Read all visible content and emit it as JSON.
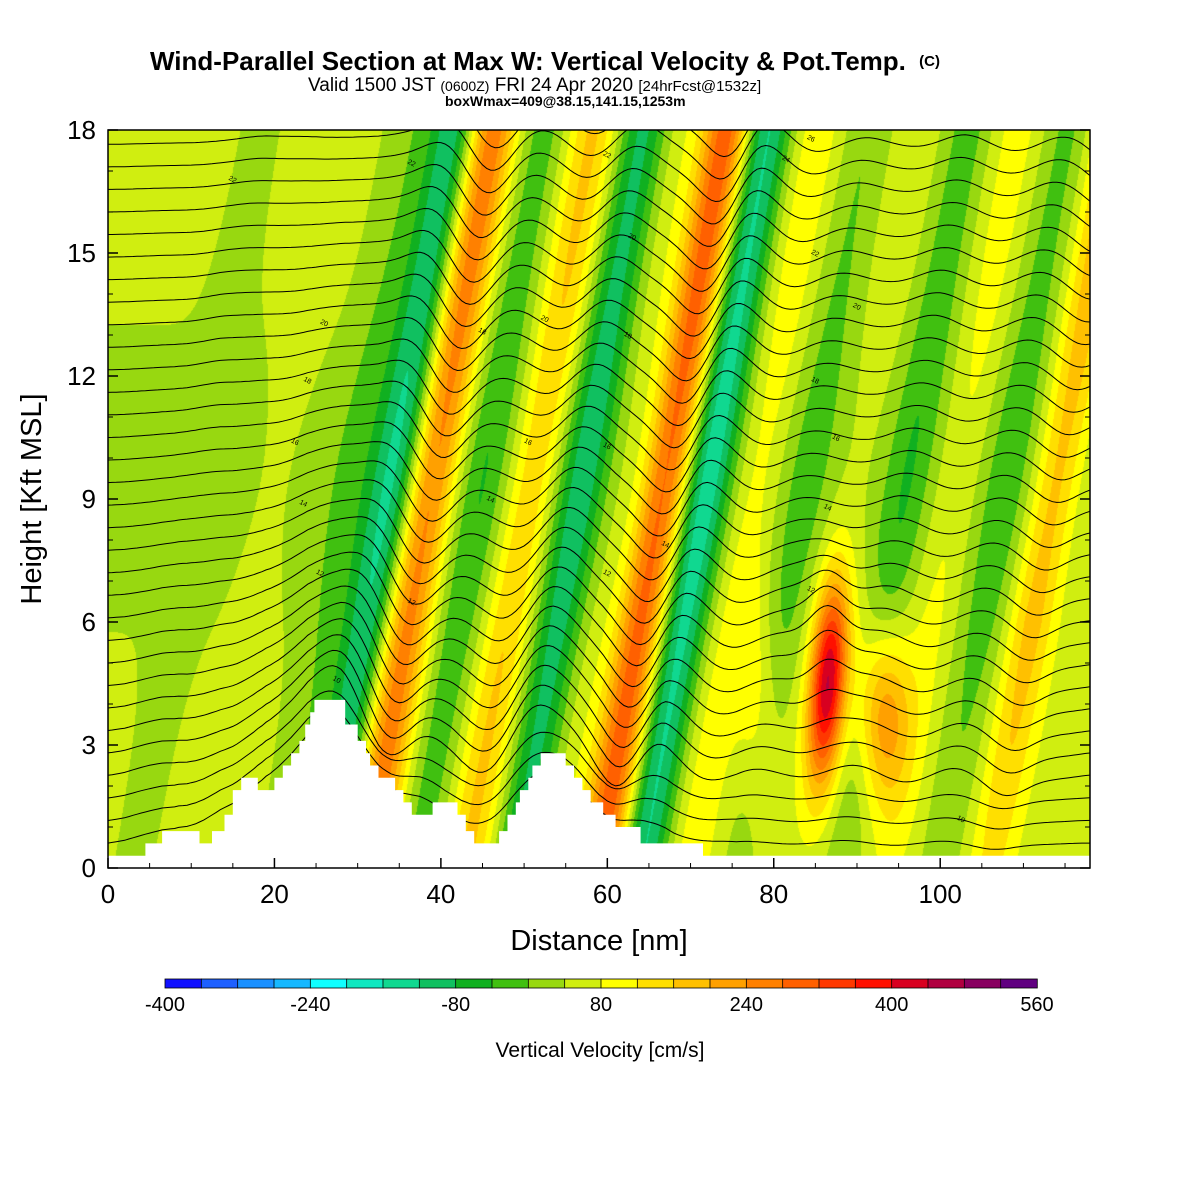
{
  "title": {
    "main": "Wind-Parallel Section at Max W: Vertical Velocity & Pot.Temp.",
    "main_suffix": "(C)",
    "valid_a": "Valid 1500 JST",
    "valid_b": "(0600Z)",
    "valid_c": "FRI 24 Apr 2020",
    "valid_d": "[24hrFcst@1532z]",
    "sub": "boxWmax=409@38.15,141.15,1253m"
  },
  "chart_data": {
    "type": "heatmap",
    "xlabel": "Distance [nm]",
    "ylabel": "Height [Kft MSL]",
    "xlim": [
      0,
      118
    ],
    "ylim": [
      0,
      18
    ],
    "xticks": [
      "0",
      "20",
      "40",
      "60",
      "80",
      "100"
    ],
    "yticks": [
      "0",
      "3",
      "6",
      "9",
      "12",
      "15",
      "18"
    ],
    "colorbar": {
      "label": "Vertical Velocity [cm/s]",
      "tick_labels": [
        "-400",
        "-240",
        "-80",
        "80",
        "240",
        "400",
        "560"
      ],
      "tick_values": [
        -400,
        -240,
        -80,
        80,
        240,
        400,
        560
      ],
      "levels": [
        -400,
        -360,
        -320,
        -280,
        -240,
        -200,
        -160,
        -120,
        -80,
        -40,
        0,
        40,
        80,
        120,
        160,
        200,
        240,
        280,
        320,
        360,
        400,
        440,
        480,
        520,
        560
      ],
      "colors": [
        "#1010ff",
        "#1e60ff",
        "#1a90ff",
        "#16b8ff",
        "#10ffff",
        "#10e8c0",
        "#10d890",
        "#10c060",
        "#10b020",
        "#40c010",
        "#98d810",
        "#d0ee10",
        "#ffff00",
        "#ffdf00",
        "#ffc000",
        "#ffa000",
        "#ff8000",
        "#ff6000",
        "#ff3800",
        "#ff1000",
        "#d80020",
        "#b00040",
        "#880060",
        "#600080"
      ]
    },
    "terrain": [
      [
        0,
        0.3
      ],
      [
        4.5,
        0.3
      ],
      [
        4.5,
        0.6
      ],
      [
        6.5,
        0.6
      ],
      [
        6.5,
        0.9
      ],
      [
        11,
        0.9
      ],
      [
        11,
        0.6
      ],
      [
        12.5,
        0.6
      ],
      [
        12.5,
        0.9
      ],
      [
        14,
        0.9
      ],
      [
        14,
        1.3
      ],
      [
        15,
        1.3
      ],
      [
        15,
        1.9
      ],
      [
        16,
        1.9
      ],
      [
        16,
        2.2
      ],
      [
        18,
        2.2
      ],
      [
        18,
        1.9
      ],
      [
        20,
        1.9
      ],
      [
        20,
        2.2
      ],
      [
        21,
        2.2
      ],
      [
        21,
        2.5
      ],
      [
        22,
        2.5
      ],
      [
        22,
        2.8
      ],
      [
        23,
        2.8
      ],
      [
        23,
        3.1
      ],
      [
        23.7,
        3.1
      ],
      [
        23.7,
        3.5
      ],
      [
        24.3,
        3.5
      ],
      [
        24.3,
        3.8
      ],
      [
        24.8,
        3.8
      ],
      [
        24.8,
        4.1
      ],
      [
        28.5,
        4.1
      ],
      [
        28.5,
        3.5
      ],
      [
        30,
        3.5
      ],
      [
        30,
        3.1
      ],
      [
        31,
        3.1
      ],
      [
        31,
        2.8
      ],
      [
        31.5,
        2.8
      ],
      [
        31.5,
        2.5
      ],
      [
        32.5,
        2.5
      ],
      [
        32.5,
        2.2
      ],
      [
        34.5,
        2.2
      ],
      [
        34.5,
        1.9
      ],
      [
        35.5,
        1.9
      ],
      [
        35.5,
        1.6
      ],
      [
        36.5,
        1.6
      ],
      [
        36.5,
        1.3
      ],
      [
        39,
        1.3
      ],
      [
        39,
        1.6
      ],
      [
        42,
        1.6
      ],
      [
        42,
        1.3
      ],
      [
        43,
        1.3
      ],
      [
        43,
        0.9
      ],
      [
        44,
        0.9
      ],
      [
        44,
        0.6
      ],
      [
        47,
        0.6
      ],
      [
        47,
        0.9
      ],
      [
        48,
        0.9
      ],
      [
        48,
        1.3
      ],
      [
        49,
        1.3
      ],
      [
        49,
        1.6
      ],
      [
        49.5,
        1.6
      ],
      [
        49.5,
        1.9
      ],
      [
        50.5,
        1.9
      ],
      [
        50.5,
        2.2
      ],
      [
        51,
        2.2
      ],
      [
        51,
        2.5
      ],
      [
        52,
        2.5
      ],
      [
        52,
        2.8
      ],
      [
        55,
        2.8
      ],
      [
        55,
        2.5
      ],
      [
        56,
        2.5
      ],
      [
        56,
        2.2
      ],
      [
        57,
        2.2
      ],
      [
        57,
        1.9
      ],
      [
        58,
        1.9
      ],
      [
        58,
        1.6
      ],
      [
        59.5,
        1.6
      ],
      [
        59.5,
        1.3
      ],
      [
        61,
        1.3
      ],
      [
        61,
        1.0
      ],
      [
        64,
        1.0
      ],
      [
        64,
        0.6
      ],
      [
        71.5,
        0.6
      ],
      [
        71.5,
        0.3
      ],
      [
        118,
        0.3
      ]
    ],
    "wave_columns_x": [
      3,
      12,
      21,
      26,
      31,
      37,
      43,
      49,
      54,
      59,
      64,
      70,
      76,
      82,
      88,
      94,
      100,
      106,
      112,
      117
    ],
    "wave_columns_w": [
      -20,
      20,
      -40,
      -160,
      220,
      -70,
      120,
      -140,
      20,
      260,
      -180,
      60,
      -50,
      20,
      -70,
      50,
      -60,
      140,
      20,
      -10
    ],
    "updraft_core": {
      "x": 86.5,
      "height_kft": 4.5,
      "w_cm_s": 409
    },
    "theta_contours": {
      "base_values_C": [
        7.5,
        8.2,
        8.8,
        9.4,
        10.0,
        10.6,
        11.2,
        11.8,
        12.4,
        13.0,
        13.6,
        14.2,
        14.8,
        15.4,
        16.0,
        16.5,
        17.0,
        17.5,
        18.0,
        18.6,
        19.2,
        19.8,
        20.4,
        21.0,
        21.6,
        22.2,
        22.8,
        23.4,
        24.0,
        24.6,
        25.2,
        25.8,
        26.4
      ],
      "labels": [
        {
          "text": "10",
          "x": 27.5,
          "y": 4.6
        },
        {
          "text": "12",
          "x": 25.5,
          "y": 7.2
        },
        {
          "text": "14",
          "x": 23.5,
          "y": 8.9
        },
        {
          "text": "16",
          "x": 22.5,
          "y": 10.4
        },
        {
          "text": "18",
          "x": 24.0,
          "y": 11.9
        },
        {
          "text": "20",
          "x": 26.0,
          "y": 13.3
        },
        {
          "text": "22",
          "x": 15.0,
          "y": 16.8
        },
        {
          "text": "22",
          "x": 36.5,
          "y": 17.2
        },
        {
          "text": "12",
          "x": 36.5,
          "y": 6.5
        },
        {
          "text": "14",
          "x": 46.0,
          "y": 9.0
        },
        {
          "text": "16",
          "x": 50.5,
          "y": 10.4
        },
        {
          "text": "18",
          "x": 45.0,
          "y": 13.1
        },
        {
          "text": "20",
          "x": 52.5,
          "y": 13.4
        },
        {
          "text": "12",
          "x": 60.0,
          "y": 7.2
        },
        {
          "text": "14",
          "x": 67.0,
          "y": 7.9
        },
        {
          "text": "16",
          "x": 60.0,
          "y": 10.3
        },
        {
          "text": "18",
          "x": 62.5,
          "y": 13.0
        },
        {
          "text": "20",
          "x": 63.0,
          "y": 15.4
        },
        {
          "text": "22",
          "x": 60.0,
          "y": 17.4
        },
        {
          "text": "24",
          "x": 81.5,
          "y": 17.3
        },
        {
          "text": "26",
          "x": 84.5,
          "y": 17.8
        },
        {
          "text": "22",
          "x": 85.0,
          "y": 15.0
        },
        {
          "text": "20",
          "x": 90.0,
          "y": 13.7
        },
        {
          "text": "18",
          "x": 85.0,
          "y": 11.9
        },
        {
          "text": "16",
          "x": 87.5,
          "y": 10.5
        },
        {
          "text": "14",
          "x": 86.5,
          "y": 8.8
        },
        {
          "text": "12",
          "x": 84.5,
          "y": 6.8
        },
        {
          "text": "10",
          "x": 102.5,
          "y": 1.2
        }
      ]
    }
  }
}
